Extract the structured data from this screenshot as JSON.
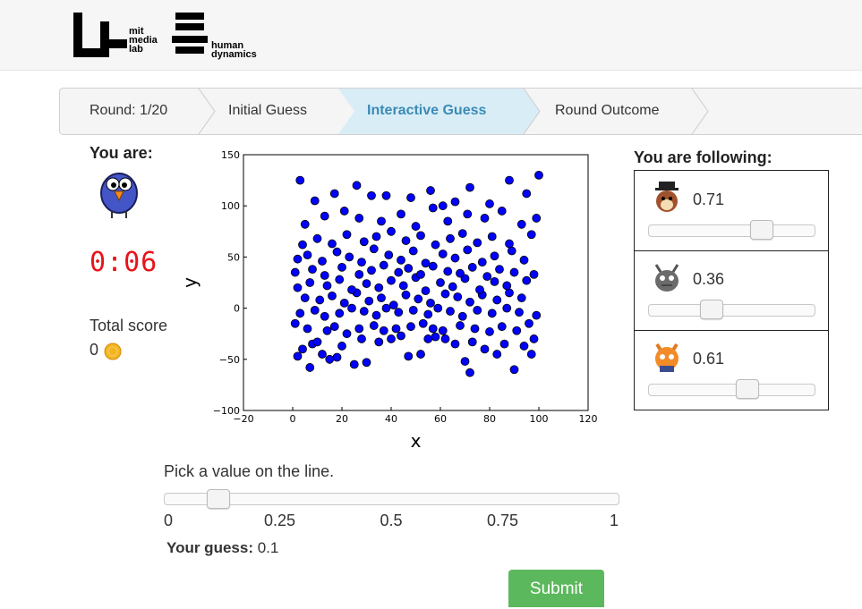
{
  "header": {
    "logo_left": [
      "mit",
      "media",
      "lab"
    ],
    "logo_right": [
      "human",
      "dynamics"
    ]
  },
  "breadcrumb": [
    "Round: 1/20",
    "Initial Guess",
    "Interactive Guess",
    "Round Outcome"
  ],
  "player": {
    "label": "You are:",
    "timer": "0:06",
    "score_label": "Total score",
    "score": 0
  },
  "chart_data": {
    "type": "scatter",
    "xlabel": "x",
    "ylabel": "y",
    "color": "#0000ff",
    "x": [
      3,
      100,
      72,
      90,
      7,
      25,
      30,
      2,
      12,
      15,
      18,
      47,
      52,
      70,
      83,
      97,
      8,
      4,
      10,
      20,
      28,
      35,
      40,
      44,
      55,
      58,
      62,
      66,
      73,
      78,
      86,
      94,
      98,
      1,
      6,
      14,
      17,
      22,
      27,
      33,
      37,
      42,
      48,
      53,
      57,
      61,
      68,
      74,
      80,
      85,
      91,
      96,
      3,
      9,
      13,
      19,
      24,
      29,
      34,
      38,
      43,
      49,
      55,
      59,
      64,
      69,
      75,
      81,
      87,
      92,
      99,
      5,
      11,
      16,
      21,
      26,
      31,
      36,
      41,
      46,
      51,
      56,
      62,
      67,
      72,
      77,
      83,
      88,
      93,
      2,
      7,
      14,
      19,
      24,
      30,
      35,
      40,
      45,
      50,
      54,
      60,
      65,
      70,
      76,
      82,
      87,
      95,
      1,
      8,
      13,
      20,
      27,
      32,
      37,
      43,
      47,
      52,
      57,
      63,
      68,
      73,
      79,
      84,
      90,
      98,
      2,
      6,
      12,
      18,
      23,
      28,
      33,
      39,
      44,
      49,
      54,
      61,
      66,
      71,
      77,
      82,
      89,
      94,
      4,
      10,
      16,
      22,
      29,
      34,
      40,
      46,
      52,
      58,
      64,
      69,
      75,
      81,
      88,
      97,
      5,
      13,
      21,
      27,
      36,
      44,
      50,
      57,
      63,
      71,
      78,
      85,
      93,
      99,
      9,
      17,
      26,
      32,
      48,
      56,
      66,
      72,
      80,
      88,
      95,
      38,
      61
    ],
    "values": [
      125,
      130,
      -63,
      -60,
      -58,
      -55,
      -53,
      -47,
      -45,
      -50,
      -48,
      -47,
      -45,
      -52,
      -45,
      -45,
      -35,
      -40,
      -33,
      -37,
      -30,
      -33,
      -30,
      -27,
      -30,
      -28,
      -30,
      -35,
      -33,
      -40,
      -35,
      -37,
      -30,
      -15,
      -20,
      -22,
      -18,
      -25,
      -20,
      -17,
      -22,
      -20,
      -18,
      -15,
      -20,
      -22,
      -17,
      -20,
      -23,
      -18,
      -22,
      -15,
      -5,
      -2,
      -8,
      -5,
      0,
      -3,
      -7,
      0,
      -4,
      -2,
      -6,
      0,
      -3,
      -8,
      -2,
      -5,
      0,
      -4,
      -7,
      10,
      8,
      12,
      5,
      15,
      7,
      10,
      3,
      13,
      9,
      5,
      14,
      11,
      6,
      13,
      8,
      15,
      10,
      20,
      25,
      22,
      28,
      18,
      24,
      20,
      27,
      22,
      30,
      17,
      25,
      21,
      29,
      18,
      26,
      22,
      27,
      35,
      38,
      32,
      40,
      33,
      37,
      42,
      35,
      39,
      33,
      41,
      36,
      34,
      40,
      31,
      38,
      35,
      33,
      48,
      52,
      46,
      55,
      50,
      45,
      58,
      52,
      47,
      56,
      44,
      53,
      49,
      57,
      45,
      51,
      56,
      47,
      62,
      68,
      63,
      72,
      65,
      70,
      75,
      66,
      71,
      62,
      68,
      73,
      64,
      70,
      63,
      72,
      82,
      90,
      95,
      88,
      85,
      92,
      80,
      98,
      85,
      92,
      88,
      95,
      82,
      88,
      105,
      112,
      120,
      110,
      108,
      115,
      104,
      118,
      102,
      125,
      112,
      110,
      100
    ],
    "xlim": [
      -20,
      120
    ],
    "xticks": [
      {
        "value": -20,
        "label": "−20"
      },
      0,
      20,
      40,
      60,
      80,
      100,
      120
    ],
    "ylim": [
      -100,
      150
    ],
    "yticks": [
      {
        "value": -100,
        "label": "−100"
      },
      {
        "value": -50,
        "label": "−50"
      },
      0,
      50,
      100,
      150
    ]
  },
  "following": {
    "title": "You are following:",
    "agents": [
      {
        "value": 0.71
      },
      {
        "value": 0.36
      },
      {
        "value": 0.61
      }
    ]
  },
  "guess": {
    "prompt": "Pick a value on the line.",
    "ticks": [
      0,
      0.25,
      0.5,
      0.75,
      1
    ],
    "label": "Your guess:",
    "value": 0.1
  },
  "submit": "Submit"
}
